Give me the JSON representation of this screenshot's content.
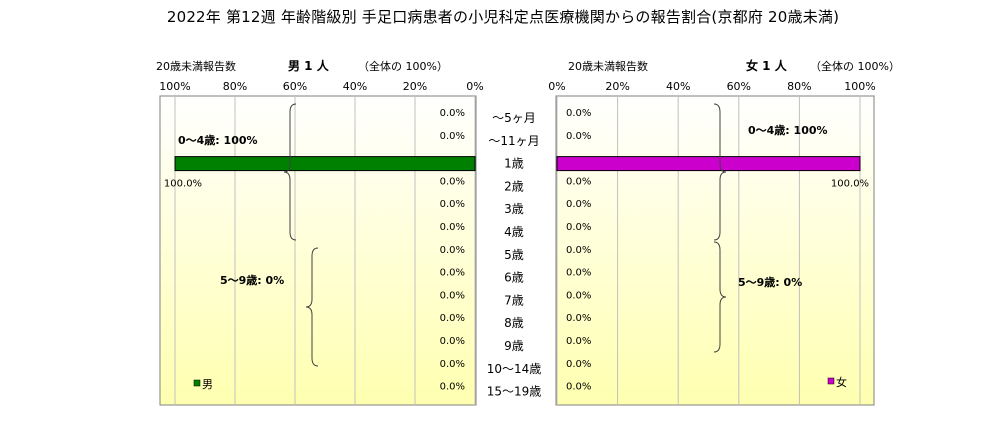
{
  "title": "2022年 第12週  年齢階級別 手足口病患者の小児科定点医療機関からの報告割合(京都府 20歳未満)",
  "panels": {
    "male": {
      "header_left": "20歳未満報告数",
      "header_mid": "男  1 人",
      "header_right": "（全体の  100%）",
      "legend": "男",
      "color": "#008000",
      "bracket_labels": [
        "0～4歳: 100%",
        "5～9歳: 0%"
      ]
    },
    "female": {
      "header_left": "20歳未満報告数",
      "header_mid": "女  1 人",
      "header_right": "（全体の  100%）",
      "legend": "女",
      "color": "#cc00cc",
      "bracket_labels": [
        "0～4歳: 100%",
        "5～9歳: 0%"
      ]
    }
  },
  "chart_data": {
    "type": "bar",
    "orientation": "horizontal",
    "layout": "population-pyramid",
    "categories": [
      "～5ヶ月",
      "～11ヶ月",
      "1歳",
      "2歳",
      "3歳",
      "4歳",
      "5歳",
      "6歳",
      "7歳",
      "8歳",
      "9歳",
      "10～14歳",
      "15～19歳"
    ],
    "series": [
      {
        "name": "男",
        "values": [
          0,
          0,
          100,
          0,
          0,
          0,
          0,
          0,
          0,
          0,
          0,
          0,
          0
        ],
        "labels": [
          "0.0%",
          "0.0%",
          "100.0%",
          "0.0%",
          "0.0%",
          "0.0%",
          "0.0%",
          "0.0%",
          "0.0%",
          "0.0%",
          "0.0%",
          "0.0%",
          "0.0%"
        ]
      },
      {
        "name": "女",
        "values": [
          0,
          0,
          100,
          0,
          0,
          0,
          0,
          0,
          0,
          0,
          0,
          0,
          0
        ],
        "labels": [
          "0.0%",
          "0.0%",
          "100.0%",
          "0.0%",
          "0.0%",
          "0.0%",
          "0.0%",
          "0.0%",
          "0.0%",
          "0.0%",
          "0.0%",
          "0.0%",
          "0.0%"
        ]
      }
    ],
    "male_ticks": [
      "100%",
      "80%",
      "60%",
      "40%",
      "20%",
      "0%"
    ],
    "female_ticks": [
      "0%",
      "20%",
      "40%",
      "60%",
      "80%",
      "100%"
    ],
    "xlim": [
      0,
      100
    ],
    "grid": true
  }
}
